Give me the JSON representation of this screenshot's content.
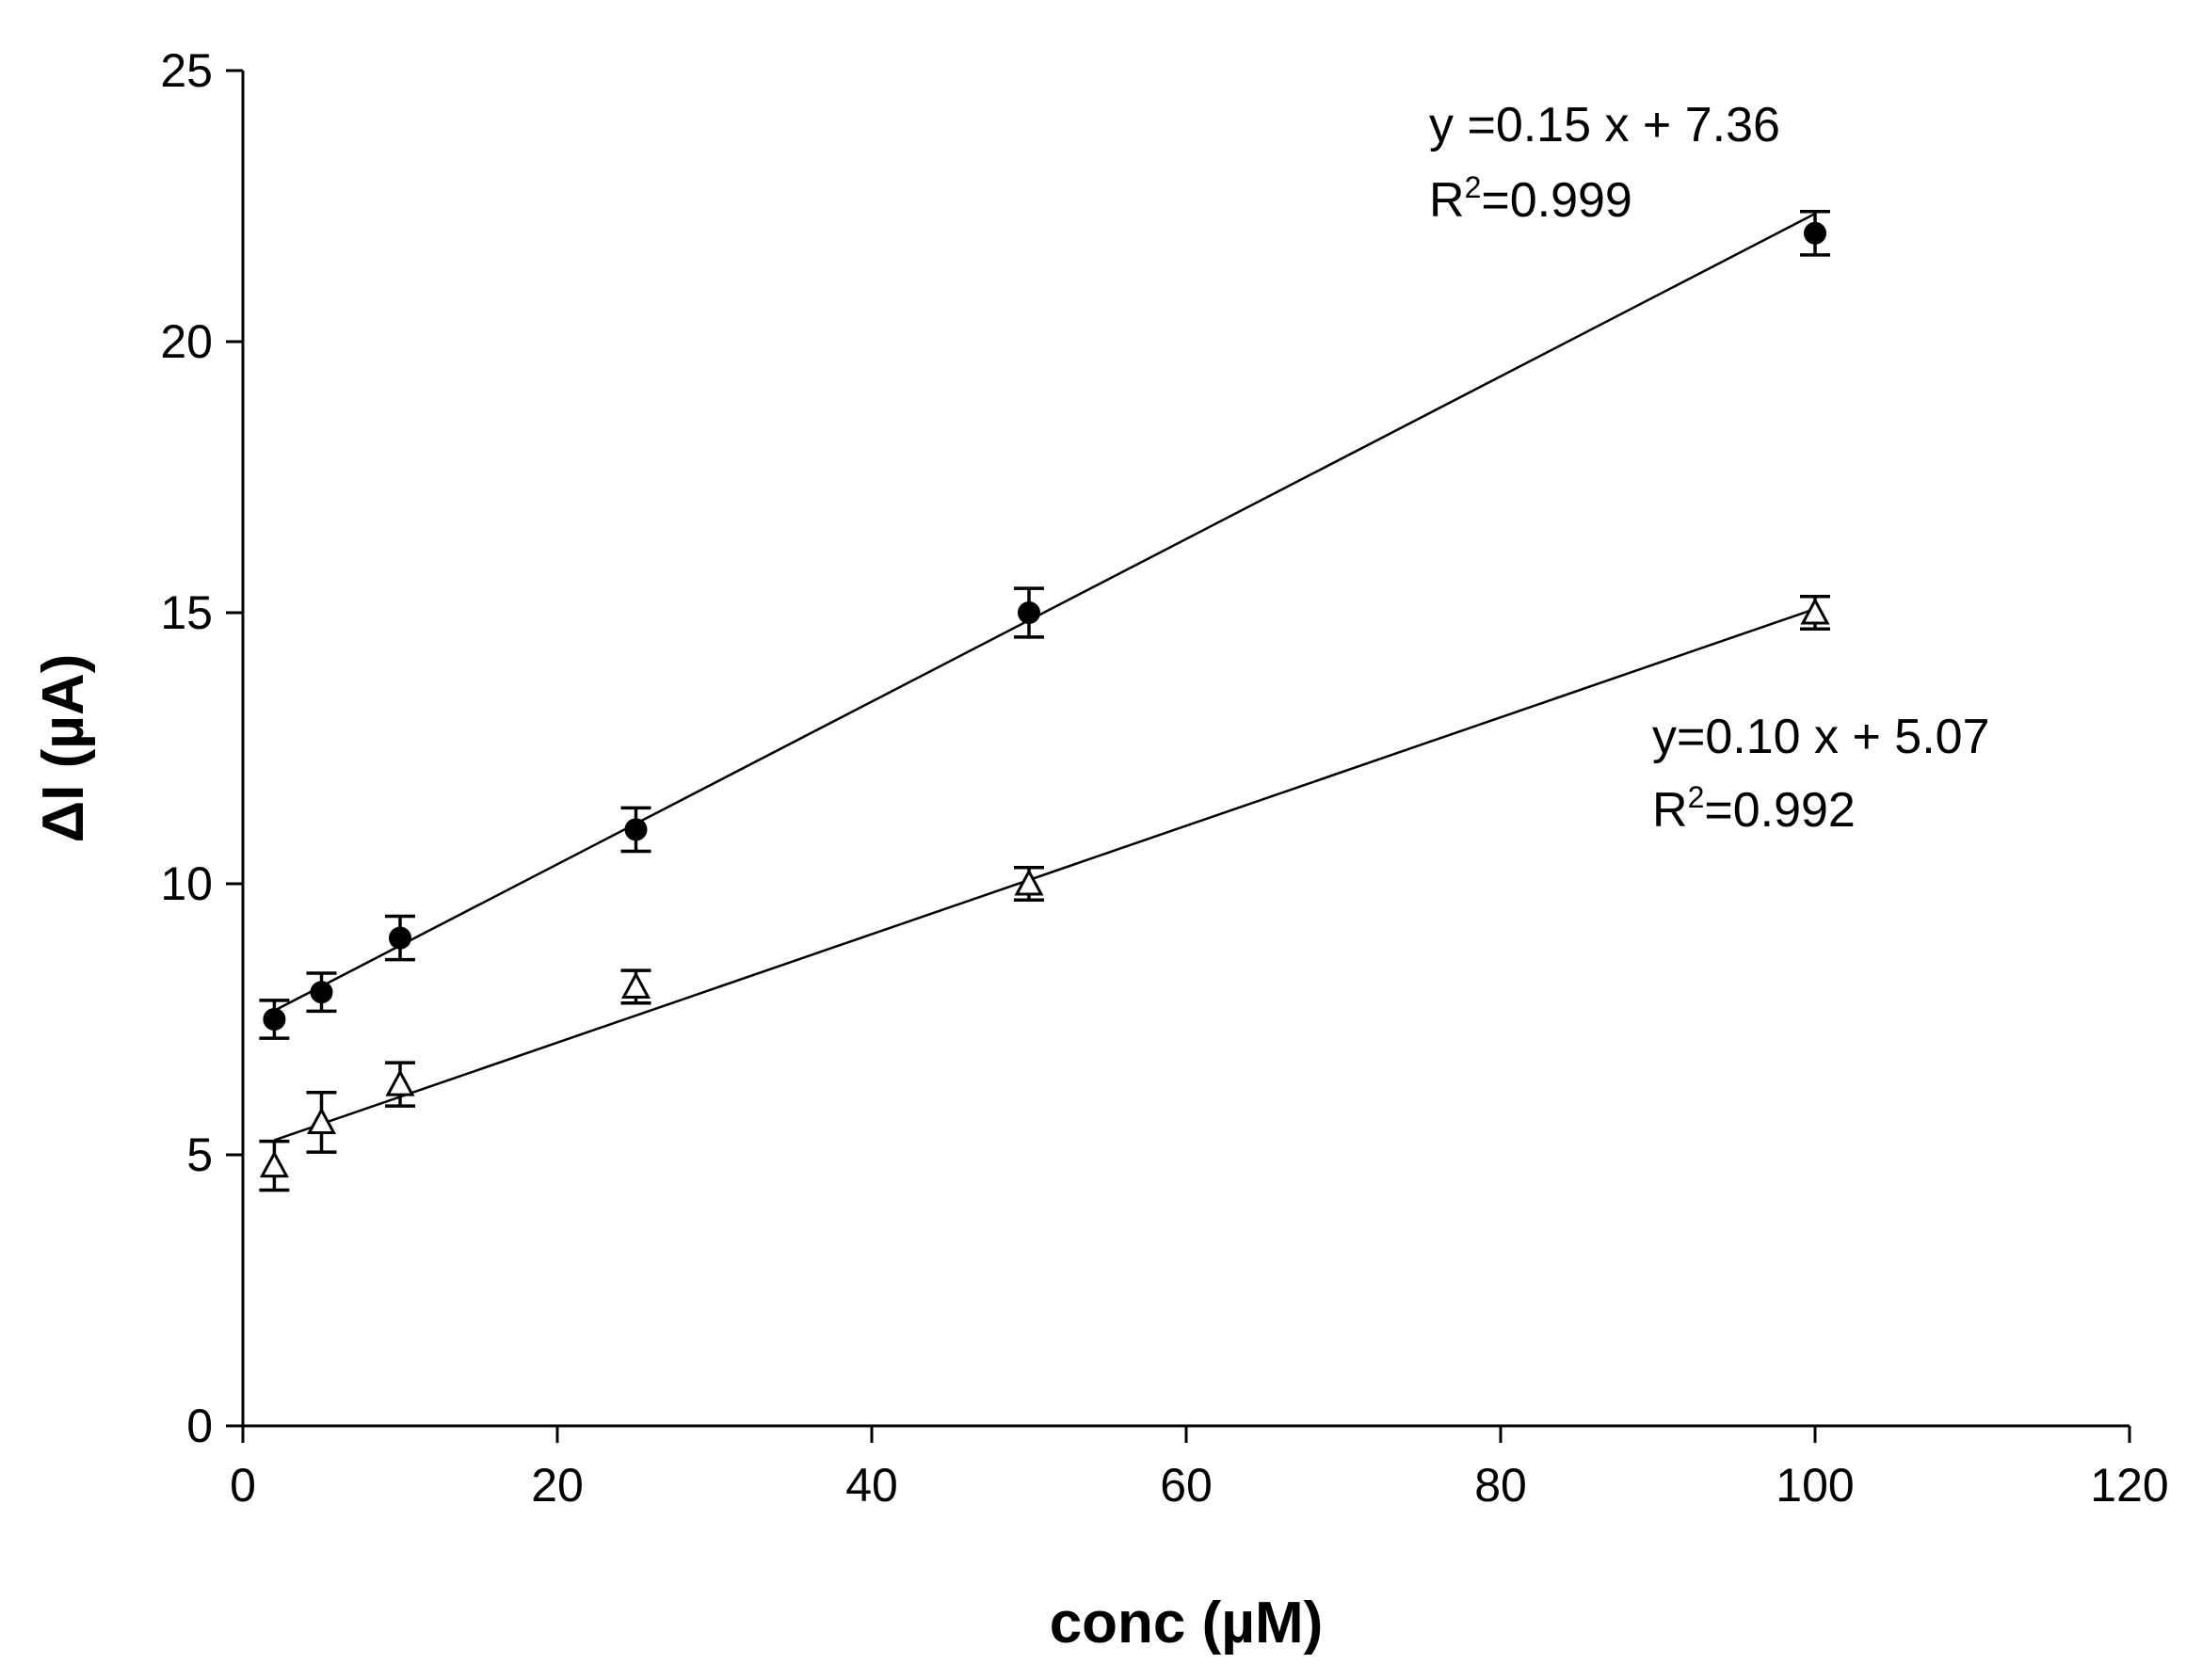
{
  "chart_data": {
    "type": "scatter",
    "title": "",
    "xlabel": "conc (µM)",
    "ylabel": "ΔI (µA)",
    "xlim": [
      0,
      120
    ],
    "ylim": [
      0,
      25
    ],
    "xticks": [
      0,
      20,
      40,
      60,
      80,
      100,
      120
    ],
    "yticks": [
      0,
      5,
      10,
      15,
      20,
      25
    ],
    "grid": false,
    "series": [
      {
        "name": "filled circles",
        "marker": "circle-filled",
        "x": [
          2,
          5,
          10,
          25,
          50,
          100
        ],
        "y": [
          7.5,
          8.0,
          9.0,
          11.0,
          15.0,
          22.0
        ],
        "error": [
          0.35,
          0.35,
          0.4,
          0.4,
          0.45,
          0.4
        ],
        "fit": {
          "slope": 0.15,
          "intercept": 7.36
        },
        "equation": {
          "line1": "y =0.15 x  + 7.36",
          "r2_prefix": "R",
          "r2_sup": "2",
          "r2_value": "=0.999"
        }
      },
      {
        "name": "open triangles",
        "marker": "triangle-open",
        "x": [
          2,
          5,
          10,
          25,
          50,
          100
        ],
        "y": [
          4.8,
          5.6,
          6.3,
          8.1,
          10.0,
          15.0
        ],
        "error": [
          0.45,
          0.55,
          0.4,
          0.3,
          0.3,
          0.3
        ],
        "fit": {
          "slope": 0.1,
          "intercept": 5.07
        },
        "equation": {
          "line1": "y=0.10 x  + 5.07",
          "r2_prefix": "R",
          "r2_sup": "2",
          "r2_value": "=0.992"
        }
      }
    ]
  }
}
